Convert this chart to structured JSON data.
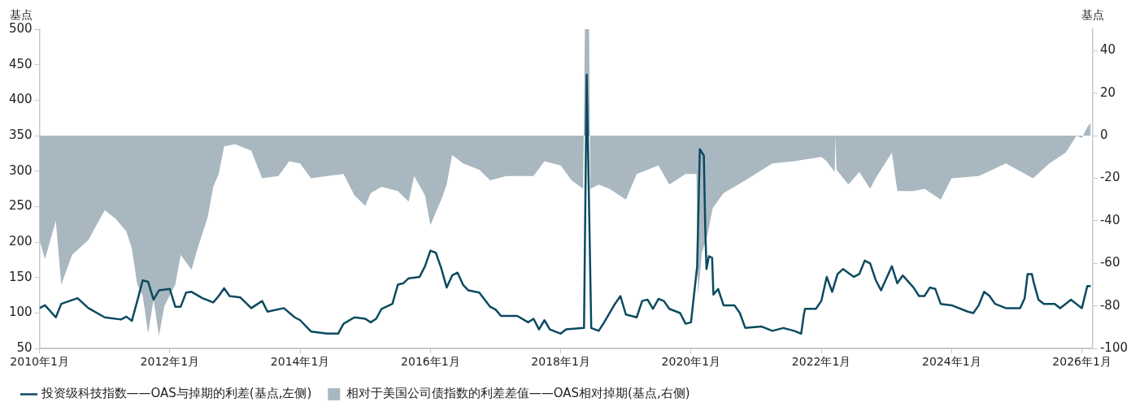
{
  "chart_data": {
    "type": "line",
    "ylabel": "基点",
    "y2label": "基点",
    "xlim": [
      "2010-01",
      "2026-03"
    ],
    "xticks": [
      {
        "value": "2010-01",
        "label": "2010年1月"
      },
      {
        "value": "2012-01",
        "label": "2012年1月"
      },
      {
        "value": "2014-01",
        "label": "2014年1月"
      },
      {
        "value": "2016-01",
        "label": "2016年1月"
      },
      {
        "value": "2018-01",
        "label": "2018年1月"
      },
      {
        "value": "2020-01",
        "label": "2020年1月"
      },
      {
        "value": "2022-01",
        "label": "2022年1月"
      },
      {
        "value": "2024-01",
        "label": "2024年1月"
      },
      {
        "value": "2026-01",
        "label": "2026年1月"
      }
    ],
    "ylim": [
      50,
      500
    ],
    "yticks": [
      50,
      100,
      150,
      200,
      250,
      300,
      350,
      400,
      450,
      500
    ],
    "y2lim": [
      -100,
      50
    ],
    "y2ticks": [
      -100,
      -80,
      -60,
      -40,
      -20,
      0,
      20,
      40
    ],
    "grid": false,
    "legend": "bottom",
    "series": [
      {
        "name": "相对于美国公司债指数的利差差值——OAS相对掉期(基点,右侧)",
        "type": "area",
        "axis": "y2",
        "color": "#a9b7c0",
        "x": [
          "2010-01",
          "2010-02",
          "2010-04",
          "2010-05",
          "2010-07",
          "2010-10",
          "2011-01",
          "2011-03",
          "2011-05",
          "2011-06",
          "2011-07",
          "2011-08",
          "2011-09",
          "2011-10",
          "2011-11",
          "2011-12",
          "2012-02",
          "2012-03",
          "2012-05",
          "2012-06",
          "2012-08",
          "2012-09",
          "2012-10",
          "2012-11",
          "2013-01",
          "2013-04",
          "2013-06",
          "2013-09",
          "2013-11",
          "2014-01",
          "2014-03",
          "2014-06",
          "2014-09",
          "2014-11",
          "2015-01",
          "2015-02",
          "2015-04",
          "2015-07",
          "2015-09",
          "2015-10",
          "2015-12",
          "2016-01",
          "2016-03",
          "2016-04",
          "2016-05",
          "2016-07",
          "2016-10",
          "2016-12",
          "2017-03",
          "2017-08",
          "2017-10",
          "2018-01",
          "2018-03",
          "2018-05-05",
          "2018-05-15",
          "2018-06-08",
          "2018-06-15",
          "2018-08",
          "2018-10",
          "2019-01",
          "2019-03",
          "2019-07",
          "2019-09",
          "2019-12",
          "2020-02-01",
          "2020-02-10",
          "2020-03",
          "2020-04",
          "2020-05",
          "2020-07",
          "2020-11",
          "2021-04",
          "2021-08",
          "2022-01",
          "2022-02",
          "2022-03-15",
          "2022-03-20",
          "2022-03-25",
          "2022-06",
          "2022-08",
          "2022-10",
          "2022-11",
          "2023-02",
          "2023-03",
          "2023-06",
          "2023-08",
          "2023-11",
          "2024-01",
          "2024-06",
          "2024-11",
          "2025-04",
          "2025-07",
          "2025-10",
          "2025-12",
          "2026-01",
          "2026-02",
          "2026-02-20"
        ],
        "values": [
          -49,
          -58,
          -40,
          -70,
          -56,
          -49,
          -35,
          -39,
          -45,
          -53,
          -70,
          -75,
          -93,
          -77,
          -94,
          -80,
          -70,
          -56,
          -63,
          -54,
          -38,
          -24,
          -18,
          -5,
          -4,
          -7,
          -20,
          -19,
          -12,
          -13,
          -20,
          -19,
          -18,
          -28,
          -33,
          -27,
          -24,
          -26,
          -31,
          -19,
          -28,
          -42,
          -30,
          -23,
          -9,
          -13,
          -16,
          -21,
          -19,
          -19,
          -12,
          -14,
          -21,
          -25,
          50,
          50,
          -25,
          -23,
          -25,
          -30,
          -18,
          -14,
          -23,
          -18,
          -18,
          -75,
          -55,
          -47,
          -34,
          -27,
          -21,
          -13,
          -12,
          -10,
          -12,
          -17,
          0,
          -16,
          -23,
          -17,
          -25,
          -20,
          -8,
          -26,
          -26,
          -25,
          -30,
          -20,
          -19,
          -13,
          -20,
          -13,
          -8,
          0,
          -1,
          4,
          6
        ]
      },
      {
        "name": "投资级科技指数——OAS与掉期的利差(基点,左侧)",
        "type": "line",
        "color": "#0b4a60",
        "x": [
          "2010-01",
          "2010-02",
          "2010-04",
          "2010-05",
          "2010-08",
          "2010-10",
          "2011-01",
          "2011-04",
          "2011-05",
          "2011-06",
          "2011-07",
          "2011-08",
          "2011-09",
          "2011-10",
          "2011-11",
          "2012-01",
          "2012-02",
          "2012-03",
          "2012-04",
          "2012-05",
          "2012-07",
          "2012-09",
          "2012-10",
          "2012-11",
          "2012-12",
          "2013-02",
          "2013-04",
          "2013-06",
          "2013-07",
          "2013-10",
          "2013-12",
          "2014-01",
          "2014-03",
          "2014-06",
          "2014-08",
          "2014-09",
          "2014-11",
          "2015-01",
          "2015-02",
          "2015-03",
          "2015-04",
          "2015-06",
          "2015-07",
          "2015-08",
          "2015-09",
          "2015-11",
          "2015-12",
          "2016-01",
          "2016-02",
          "2016-03",
          "2016-04",
          "2016-05",
          "2016-06",
          "2016-07",
          "2016-08",
          "2016-10",
          "2016-12",
          "2017-01",
          "2017-02",
          "2017-05",
          "2017-07",
          "2017-08",
          "2017-09",
          "2017-10",
          "2017-11",
          "2018-01",
          "2018-02",
          "2018-05-10",
          "2018-05-25",
          "2018-06-20",
          "2018-08",
          "2018-09",
          "2018-11",
          "2018-12",
          "2019-01",
          "2019-03",
          "2019-04",
          "2019-05",
          "2019-06",
          "2019-07",
          "2019-08",
          "2019-09",
          "2019-11",
          "2019-12",
          "2020-01",
          "2020-02-05",
          "2020-02-20",
          "2020-03-12",
          "2020-03-20",
          "2020-03-27",
          "2020-04-10",
          "2020-04-28",
          "2020-05-05",
          "2020-06",
          "2020-07",
          "2020-09",
          "2020-10",
          "2020-11",
          "2021-02",
          "2021-04",
          "2021-06",
          "2021-08",
          "2021-09-10",
          "2021-09-25",
          "2021-10",
          "2021-12",
          "2022-01",
          "2022-02",
          "2022-03-01",
          "2022-04",
          "2022-05",
          "2022-07",
          "2022-08",
          "2022-09",
          "2022-10",
          "2022-11",
          "2022-12",
          "2023-02",
          "2023-03",
          "2023-04",
          "2023-06",
          "2023-07",
          "2023-08",
          "2023-09",
          "2023-10",
          "2023-11",
          "2024-01",
          "2024-04",
          "2024-05",
          "2024-06",
          "2024-07",
          "2024-08",
          "2024-09",
          "2024-11",
          "2025-01-20",
          "2025-02-15",
          "2025-03-01",
          "2025-03-25",
          "2025-04-05",
          "2025-05",
          "2025-06",
          "2025-08",
          "2025-09",
          "2025-11",
          "2025-12-20",
          "2026-01",
          "2026-02",
          "2026-02-20"
        ],
        "values": [
          107,
          111,
          94,
          113,
          121,
          107,
          94,
          91,
          95,
          89,
          117,
          146,
          144,
          119,
          132,
          134,
          109,
          109,
          129,
          130,
          121,
          115,
          124,
          135,
          124,
          122,
          107,
          117,
          102,
          107,
          94,
          90,
          74,
          71,
          71,
          85,
          94,
          92,
          87,
          92,
          106,
          113,
          140,
          142,
          149,
          151,
          166,
          188,
          185,
          163,
          136,
          153,
          157,
          140,
          132,
          129,
          109,
          105,
          96,
          96,
          87,
          92,
          77,
          90,
          77,
          71,
          77,
          79,
          436,
          79,
          75,
          87,
          113,
          124,
          98,
          94,
          117,
          119,
          106,
          120,
          117,
          106,
          100,
          85,
          87,
          166,
          331,
          322,
          219,
          162,
          180,
          178,
          126,
          134,
          111,
          111,
          100,
          79,
          81,
          75,
          79,
          75,
          71,
          98,
          106,
          106,
          117,
          151,
          130,
          155,
          162,
          151,
          155,
          174,
          170,
          147,
          132,
          166,
          142,
          153,
          136,
          124,
          124,
          136,
          134,
          113,
          111,
          102,
          100,
          111,
          130,
          124,
          113,
          107,
          107,
          121,
          155,
          155,
          143,
          119,
          113,
          113,
          107,
          119,
          109,
          107,
          138,
          138
        ]
      }
    ]
  }
}
